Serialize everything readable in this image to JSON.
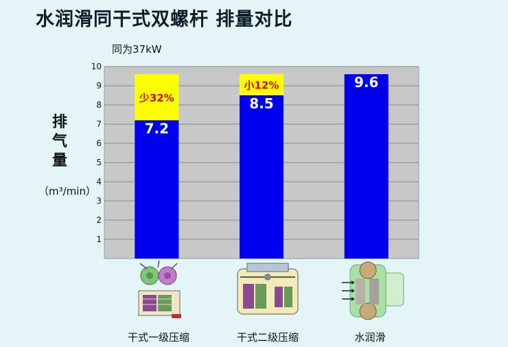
{
  "title": "水润滑同干式双螺杆 排量对比",
  "subtitle": "同为37kW",
  "ylabel_chars": [
    "排",
    "气",
    "量"
  ],
  "yunit": "（m³/min）",
  "colors": {
    "bar": "#0000f0",
    "diff": "#ffff00",
    "diff_text": "#e00000",
    "value_text": "#ffffff",
    "plot_bg": "#c8c8c8",
    "grid": "#8a8a8a"
  },
  "chart_data": {
    "type": "bar",
    "categories": [
      "干式一级压缩",
      "干式二级压缩",
      "水润滑"
    ],
    "values": [
      7.2,
      8.5,
      9.6
    ],
    "value_labels": [
      "7.2",
      "8.5",
      "9.6"
    ],
    "reference_value": 9.6,
    "difference_labels": [
      "少32%",
      "小12%",
      ""
    ],
    "title": "水润滑同干式双螺杆 排量对比",
    "subtitle": "同为37kW",
    "ylabel": "排气量",
    "yunit": "（m³/min）",
    "ylim": [
      0,
      10
    ],
    "yticks": [
      1,
      2,
      3,
      4,
      5,
      6,
      7,
      8,
      9,
      10
    ],
    "grid": true,
    "legend": "none"
  },
  "machines": [
    {
      "icon": "dry-single-stage-compressor-icon"
    },
    {
      "icon": "dry-two-stage-compressor-icon"
    },
    {
      "icon": "water-lubricated-compressor-icon"
    }
  ]
}
